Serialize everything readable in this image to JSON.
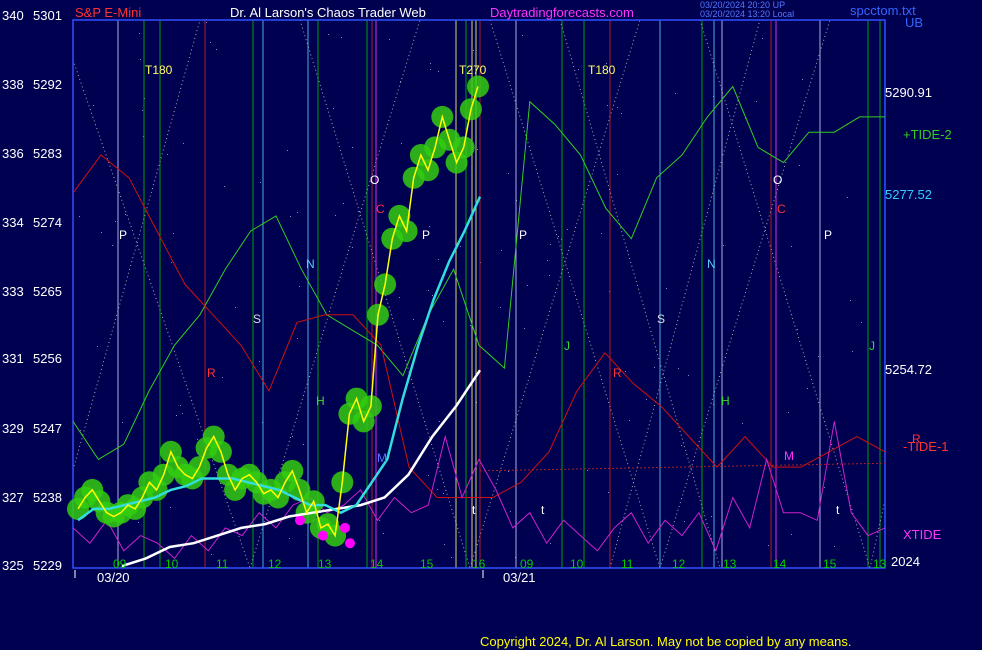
{
  "header": {
    "instrument": "S&P E-Mini",
    "title": "Dr. Al Larson's Chaos Trader Web",
    "site": "Daytradingforecasts.com",
    "stamp1": "03/20/2024 20:20 UP",
    "stamp2": "03/20/2024 13:20 Local",
    "file": "spcctom.txt",
    "ub": "UB"
  },
  "footer": {
    "copyright": "Copyright 2024, Dr. Al Larson. May not be copied by any means."
  },
  "colors": {
    "background": "#000050",
    "frame": "#3050ff",
    "price": "#ffff00",
    "price_glow": "#33cc11",
    "bearish_dot": "#ff00ff",
    "tide_plus2": "#33cc22",
    "tide_minus1": "#d01010",
    "xtide": "#cc22cc",
    "cyan_line": "#33dddd",
    "white_line": "#ffffff",
    "blue_line": "#2040ff"
  },
  "chart_data": {
    "type": "line",
    "title": "S&P E-Mini",
    "x_dates": [
      "03/20",
      "03/21"
    ],
    "x_hour_ticks": [
      "09",
      "10",
      "11",
      "12",
      "13",
      "14",
      "15",
      "16",
      "09",
      "10",
      "11",
      "12",
      "13",
      "14",
      "15",
      "13"
    ],
    "year_label": "2024",
    "y_left_outer": [
      "340",
      "338",
      "336",
      "334",
      "333",
      "331",
      "329",
      "327",
      "325"
    ],
    "y_left_inner": [
      "5301",
      "5292",
      "5283",
      "5274",
      "5265",
      "5256",
      "5247",
      "5238",
      "5229"
    ],
    "ylim": [
      5229,
      5301
    ],
    "right_values": [
      {
        "label": "5290.91",
        "value": 5290.91,
        "color": "#ffffff"
      },
      {
        "label": "5277.52",
        "value": 5277.52,
        "color": "#33ccff"
      },
      {
        "label": "5254.72",
        "value": 5254.72,
        "color": "#ffffff"
      }
    ],
    "series_labels": [
      {
        "label": "+TIDE-2",
        "color": "#33cc22"
      },
      {
        "label": "-TIDE-1",
        "color": "#ff3333"
      },
      {
        "label": "XTIDE",
        "color": "#ff33ff"
      }
    ],
    "markers": [
      {
        "text": "T180",
        "color": "#ffff66"
      },
      {
        "text": "T270",
        "color": "#ffff66"
      },
      {
        "text": "T180",
        "color": "#ffff66"
      },
      {
        "text": "P",
        "color": "#ffffff"
      },
      {
        "text": "P",
        "color": "#ffffff"
      },
      {
        "text": "P",
        "color": "#ffffff"
      },
      {
        "text": "P",
        "color": "#ffffff"
      },
      {
        "text": "O",
        "color": "#ffffff"
      },
      {
        "text": "O",
        "color": "#ffffff"
      },
      {
        "text": "C",
        "color": "#ff3333"
      },
      {
        "text": "C",
        "color": "#ff3333"
      },
      {
        "text": "N",
        "color": "#55ccff"
      },
      {
        "text": "N",
        "color": "#55ccff"
      },
      {
        "text": "S",
        "color": "#dddddd"
      },
      {
        "text": "S",
        "color": "#dddddd"
      },
      {
        "text": "R",
        "color": "#ff3333"
      },
      {
        "text": "R",
        "color": "#ff3333"
      },
      {
        "text": "R",
        "color": "#ff3333"
      },
      {
        "text": "H",
        "color": "#33dd33"
      },
      {
        "text": "H",
        "color": "#33dd33"
      },
      {
        "text": "J",
        "color": "#33dd33"
      },
      {
        "text": "J",
        "color": "#33dd33"
      },
      {
        "text": "M",
        "color": "#5577ff"
      },
      {
        "text": "M",
        "color": "#ff33ff"
      },
      {
        "text": "t",
        "color": "#ffffff"
      },
      {
        "text": "t",
        "color": "#ffffff"
      },
      {
        "text": "t",
        "color": "#ffffff"
      }
    ],
    "price_series": [
      5236.5,
      5238,
      5239,
      5237.5,
      5236,
      5235.5,
      5236,
      5237,
      5236.5,
      5238,
      5240,
      5239,
      5241,
      5244,
      5242,
      5241,
      5240.5,
      5242,
      5244.5,
      5246,
      5244,
      5241,
      5239,
      5240.5,
      5241,
      5240,
      5238.5,
      5239,
      5238,
      5240,
      5241.5,
      5239,
      5236,
      5237.5,
      5234,
      5234.5,
      5233,
      5240,
      5249,
      5251,
      5248,
      5250,
      5262,
      5266,
      5272,
      5275,
      5273,
      5280,
      5283,
      5281,
      5284,
      5288,
      5285,
      5282,
      5284,
      5289,
      5292
    ],
    "cyan_series": [
      5235,
      5236.5,
      5236.5,
      5237,
      5237.5,
      5238,
      5239,
      5239.5,
      5240.5,
      5240.5,
      5240.5,
      5240,
      5239.5,
      5239,
      5238,
      5237,
      5237,
      5236,
      5237,
      5240,
      5243,
      5251,
      5258,
      5264,
      5269,
      5273,
      5277.52
    ],
    "white_series": [
      5229,
      5230,
      5231.5,
      5232,
      5233,
      5234,
      5234.5,
      5235.5,
      5236,
      5236.5,
      5237,
      5238,
      5241,
      5246,
      5250,
      5254.72
    ],
    "tide_plus2": [
      5248,
      5243,
      5245,
      5252,
      5258,
      5262,
      5268,
      5273,
      5275,
      5268,
      5262,
      5260,
      5258,
      5254,
      5262,
      5268,
      5258,
      5255,
      5290,
      5287,
      5283,
      5276,
      5272,
      5280,
      5283,
      5288,
      5292,
      5284,
      5282,
      5286,
      5286,
      5288,
      5288
    ],
    "tide_minus1": [
      5278,
      5283,
      5280,
      5273,
      5266,
      5262,
      5258,
      5252,
      5261,
      5262,
      5262,
      5258,
      5242,
      5238,
      5238,
      5238,
      5240,
      5244,
      5252,
      5257,
      5253,
      5250,
      5246,
      5242,
      5246,
      5242,
      5242,
      5244,
      5246,
      5244
    ],
    "xtide": [
      5234,
      5232,
      5235,
      5231,
      5233,
      5232,
      5230,
      5233,
      5231,
      5234,
      5233,
      5236,
      5234,
      5237,
      5238,
      5236,
      5237,
      5239,
      5235,
      5238,
      5236,
      5237,
      5246,
      5238,
      5243,
      5239,
      5234,
      5236,
      5232,
      5235,
      5233,
      5231,
      5234,
      5236,
      5232,
      5235,
      5233,
      5236,
      5231,
      5238,
      5234,
      5243,
      5236,
      5236,
      5235,
      5248,
      5236,
      5233,
      5234
    ]
  }
}
